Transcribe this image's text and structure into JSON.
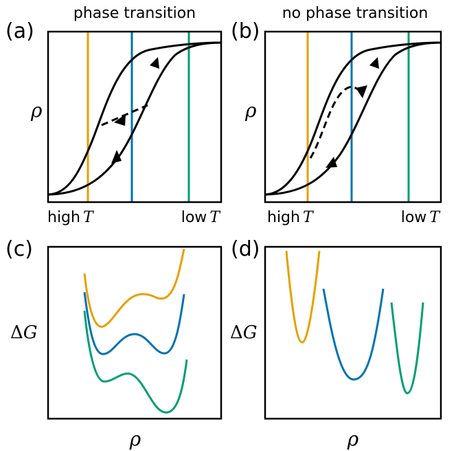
{
  "panels": {
    "a": {
      "letter": "(a)",
      "header": "phase transition",
      "ylabel_symbol": "ρ",
      "xlabel_left_word": "high",
      "xlabel_left_var": "T",
      "xlabel_right_word": "low",
      "xlabel_right_var": "T"
    },
    "b": {
      "letter": "(b)",
      "header": "no phase transition",
      "ylabel_symbol": "ρ",
      "xlabel_left_word": "high",
      "xlabel_left_var": "T",
      "xlabel_right_word": "low",
      "xlabel_right_var": "T"
    },
    "c": {
      "letter": "(c)",
      "ylabel_prefix": "Δ",
      "ylabel_var": "G",
      "xlabel_symbol": "ρ"
    },
    "d": {
      "letter": "(d)",
      "ylabel_prefix": "Δ",
      "ylabel_var": "G",
      "xlabel_symbol": "ρ"
    }
  },
  "colors": {
    "orange": "#E69F00",
    "blue": "#0072B2",
    "green": "#009E73",
    "black": "#000000"
  },
  "legend_semantics": {
    "orange": "high T",
    "blue": "intermediate T",
    "green": "low T"
  }
}
